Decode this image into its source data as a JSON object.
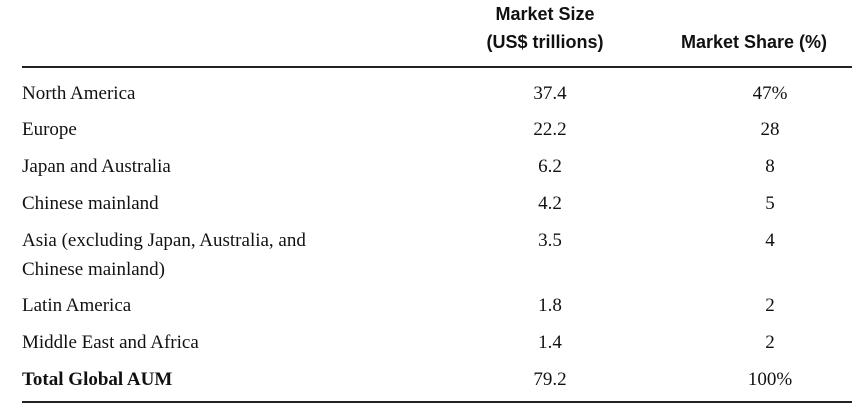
{
  "header": {
    "market_size_line1": "Market Size",
    "market_size_line2": "(US$ trillions)",
    "market_share": "Market Share (%)"
  },
  "rows": [
    {
      "region": "North America",
      "size": "37.4",
      "share": "47%"
    },
    {
      "region": "Europe",
      "size": "22.2",
      "share": "28"
    },
    {
      "region": "Japan and Australia",
      "size": "6.2",
      "share": "8"
    },
    {
      "region": "Chinese mainland",
      "size": "4.2",
      "share": "5"
    },
    {
      "region_line1": "Asia (excluding Japan, Australia, and",
      "region_line2": "Chinese mainland)",
      "size": "3.5",
      "share": "4"
    },
    {
      "region": "Latin America",
      "size": "1.8",
      "share": "2"
    },
    {
      "region": "Middle East and Africa",
      "size": "1.4",
      "share": "2"
    }
  ],
  "total": {
    "region": "Total Global AUM",
    "size": "79.2",
    "share": "100%"
  }
}
